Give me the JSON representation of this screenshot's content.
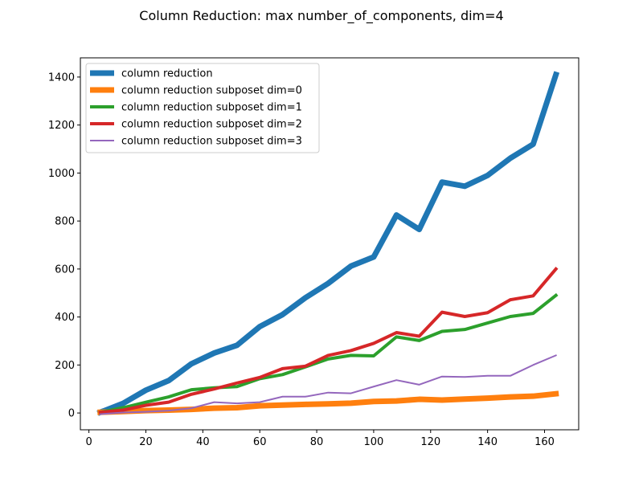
{
  "chart_data": {
    "type": "line",
    "title": "Column Reduction: max number_of_components, dim=4",
    "xlabel": "",
    "ylabel": "",
    "xlim": [
      -3,
      172
    ],
    "ylim": [
      -70,
      1480
    ],
    "xticks": [
      0,
      20,
      40,
      60,
      80,
      100,
      120,
      140,
      160
    ],
    "yticks": [
      0,
      200,
      400,
      600,
      800,
      1000,
      1200,
      1400
    ],
    "grid": false,
    "legend_position": "upper-left",
    "x": [
      4,
      12,
      20,
      28,
      36,
      44,
      52,
      60,
      68,
      76,
      84,
      92,
      100,
      108,
      116,
      124,
      132,
      140,
      148,
      156,
      164
    ],
    "series": [
      {
        "name": "column reduction",
        "color": "#1f77b4",
        "width": "thick",
        "values": [
          3,
          40,
          95,
          135,
          205,
          250,
          282,
          360,
          410,
          480,
          540,
          612,
          650,
          825,
          765,
          962,
          945,
          990,
          1062,
          1120,
          1410
        ]
      },
      {
        "name": "column reduction subposet dim=0",
        "color": "#ff7f0e",
        "width": "thick",
        "values": [
          3,
          6,
          10,
          12,
          15,
          20,
          22,
          30,
          33,
          36,
          38,
          41,
          48,
          50,
          57,
          54,
          58,
          62,
          67,
          70,
          80
        ]
      },
      {
        "name": "column reduction subposet dim=1",
        "color": "#2ca02c",
        "width": "medium",
        "values": [
          3,
          22,
          45,
          67,
          97,
          105,
          110,
          143,
          160,
          192,
          225,
          240,
          238,
          317,
          302,
          340,
          348,
          375,
          402,
          415,
          490
        ]
      },
      {
        "name": "column reduction subposet dim=2",
        "color": "#d62728",
        "width": "medium",
        "values": [
          3,
          12,
          32,
          45,
          78,
          100,
          125,
          148,
          185,
          195,
          240,
          260,
          290,
          335,
          320,
          420,
          402,
          418,
          472,
          488,
          600
        ]
      },
      {
        "name": "column reduction subposet dim=3",
        "color": "#9467bd",
        "width": "thin",
        "values": [
          -5,
          2,
          5,
          10,
          20,
          45,
          40,
          45,
          68,
          68,
          85,
          82,
          110,
          137,
          118,
          152,
          150,
          155,
          155,
          200,
          240
        ]
      }
    ]
  }
}
